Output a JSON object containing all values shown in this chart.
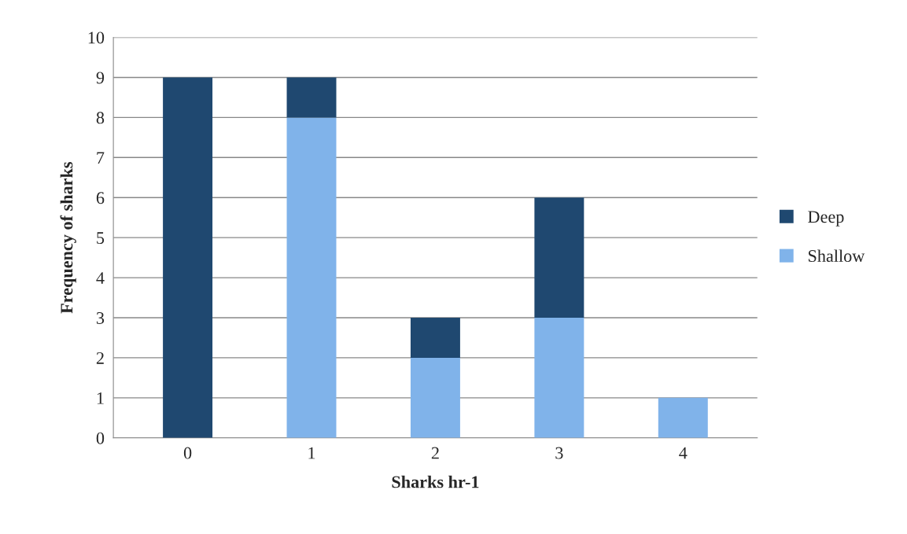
{
  "chart_data": {
    "type": "bar",
    "xlabel": "Sharks hr-1",
    "ylabel": "Frequency of sharks",
    "categories": [
      "0",
      "1",
      "2",
      "3",
      "4"
    ],
    "stacked": true,
    "series": [
      {
        "name": "Shallow",
        "color": "#80b3ea",
        "values": [
          0,
          8,
          2,
          3,
          1
        ]
      },
      {
        "name": "Deep",
        "color": "#1f4870",
        "values": [
          9,
          1,
          1,
          3,
          0
        ]
      }
    ],
    "ylim": [
      0,
      10
    ],
    "yticks": [
      0,
      1,
      2,
      3,
      4,
      5,
      6,
      7,
      8,
      9,
      10
    ],
    "grid": "y",
    "legend": "right"
  }
}
